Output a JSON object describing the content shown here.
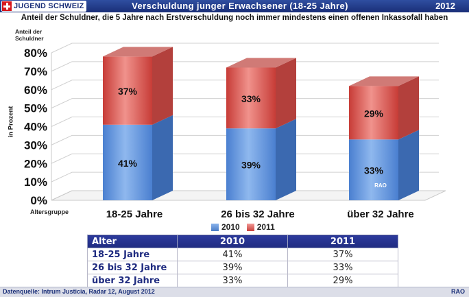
{
  "header": {
    "logo_text": "JUGEND SCHWEIZ",
    "title": "Verschuldung junger Erwachsener (18-25 Jahre)",
    "year": "2012",
    "subtitle": "Anteil der Schuldner, die 5 Jahre nach Erstverschuldung noch immer mindestens einen offenen Inkassofall haben"
  },
  "chart_data": {
    "type": "bar",
    "stacked": true,
    "title": "Anteil der Schuldner, die 5 Jahre nach Erstverschuldung noch immer mindestens einen offenen Inkassofall haben",
    "ylabel_top": "Anteil der Schuldner",
    "ylabel": "in Prozent",
    "xlabel": "Altersgruppe",
    "categories": [
      "18-25 Jahre",
      "26 bis 32 Jahre",
      "über 32 Jahre"
    ],
    "series": [
      {
        "name": "2010",
        "values": [
          41,
          39,
          33
        ],
        "labels": [
          "41%",
          "39%",
          "33%"
        ],
        "color": "#5b8fd6"
      },
      {
        "name": "2011",
        "values": [
          37,
          33,
          29
        ],
        "labels": [
          "37%",
          "33%",
          "29%"
        ],
        "color": "#d9534f"
      }
    ],
    "yticks": [
      "0%",
      "10%",
      "20%",
      "30%",
      "40%",
      "50%",
      "60%",
      "70%",
      "80%"
    ],
    "ylim": [
      0,
      80
    ],
    "grid": true,
    "legend": "bottom",
    "watermark": "RAO"
  },
  "table": {
    "headers": [
      "Alter",
      "2010",
      "2011"
    ],
    "rows": [
      [
        "18-25 Jahre",
        "41%",
        "37%"
      ],
      [
        "26 bis 32 Jahre",
        "39%",
        "33%"
      ],
      [
        "über 32 Jahre",
        "33%",
        "29%"
      ]
    ]
  },
  "footer": {
    "source": "Datenquelle: Intrum Justicia, Radar 12, August 2012",
    "brand": "RAO"
  },
  "colors": {
    "accent": "#1f2b80",
    "bar_2010": "#5b8fd6",
    "bar_2011": "#d9534f"
  }
}
